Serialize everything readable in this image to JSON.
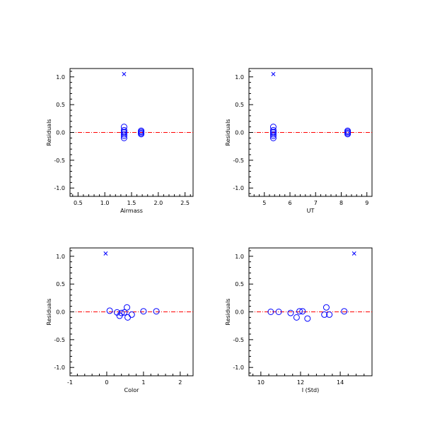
{
  "colors": {
    "points": "#0000ff",
    "zero_line": "#ff0000",
    "axes": "#000000"
  },
  "chart_data": [
    {
      "type": "scatter",
      "xlabel": "Airmass",
      "ylabel": "Residuals",
      "xlim": [
        0.35,
        2.65
      ],
      "ylim": [
        -1.15,
        1.15
      ],
      "xticks": [
        0.5,
        1.0,
        1.5,
        2.0,
        2.5
      ],
      "xtick_labels": [
        "0.5",
        "1.0",
        "1.5",
        "2.0",
        "2.5"
      ],
      "yticks": [
        -1.0,
        -0.5,
        0.0,
        0.5,
        1.0
      ],
      "ytick_labels": [
        "-1.0",
        "-0.5",
        "0.0",
        "0.5",
        "1.0"
      ],
      "zero_line": true,
      "series": [
        {
          "marker": "circle",
          "x": [
            1.36,
            1.36,
            1.36,
            1.36,
            1.36,
            1.36,
            1.36,
            1.68,
            1.68,
            1.68,
            1.68
          ],
          "y": [
            0.1,
            0.04,
            0.01,
            0.0,
            -0.03,
            -0.06,
            -0.1,
            0.03,
            0.01,
            -0.01,
            -0.03
          ]
        },
        {
          "marker": "cross",
          "x": [
            1.36
          ],
          "y": [
            1.05
          ]
        }
      ]
    },
    {
      "type": "scatter",
      "xlabel": "UT",
      "ylabel": "Residuals",
      "xlim": [
        4.4,
        9.2
      ],
      "ylim": [
        -1.15,
        1.15
      ],
      "xticks": [
        5,
        6,
        7,
        8,
        9
      ],
      "xtick_labels": [
        "5",
        "6",
        "7",
        "8",
        "9"
      ],
      "yticks": [
        -1.0,
        -0.5,
        0.0,
        0.5,
        1.0
      ],
      "ytick_labels": [
        "-1.0",
        "-0.5",
        "0.0",
        "0.5",
        "1.0"
      ],
      "zero_line": true,
      "series": [
        {
          "marker": "circle",
          "x": [
            5.35,
            5.35,
            5.35,
            5.35,
            5.35,
            5.35,
            5.35,
            8.25,
            8.25,
            8.25,
            8.25
          ],
          "y": [
            0.1,
            0.04,
            0.01,
            0.0,
            -0.03,
            -0.06,
            -0.1,
            0.03,
            0.01,
            -0.01,
            -0.03
          ]
        },
        {
          "marker": "cross",
          "x": [
            5.35
          ],
          "y": [
            1.05
          ]
        }
      ]
    },
    {
      "type": "scatter",
      "xlabel": "Color",
      "ylabel": "Residuals",
      "xlim": [
        -1.0,
        2.35
      ],
      "ylim": [
        -1.15,
        1.15
      ],
      "xticks": [
        -1,
        0,
        1,
        2
      ],
      "xtick_labels": [
        "-1",
        "0",
        "1",
        "2"
      ],
      "yticks": [
        -1.0,
        -0.5,
        0.0,
        0.5,
        1.0
      ],
      "ytick_labels": [
        "-1.0",
        "-0.5",
        "0.0",
        "0.5",
        "1.0"
      ],
      "zero_line": true,
      "series": [
        {
          "marker": "circle",
          "x": [
            0.08,
            0.28,
            0.35,
            0.4,
            0.48,
            0.55,
            0.57,
            0.68,
            1.0,
            1.35
          ],
          "y": [
            0.02,
            -0.01,
            -0.07,
            -0.02,
            -0.01,
            0.08,
            -0.1,
            -0.05,
            0.01,
            0.01
          ]
        },
        {
          "marker": "cross",
          "x": [
            -0.03
          ],
          "y": [
            1.05
          ]
        }
      ]
    },
    {
      "type": "scatter",
      "xlabel": "I (Std)",
      "ylabel": "Residuals",
      "xlim": [
        9.4,
        15.6
      ],
      "ylim": [
        -1.15,
        1.15
      ],
      "xticks": [
        10,
        12,
        14
      ],
      "xtick_labels": [
        "10",
        "12",
        "14"
      ],
      "yticks": [
        -1.0,
        -0.5,
        0.0,
        0.5,
        1.0
      ],
      "ytick_labels": [
        "-1.0",
        "-0.5",
        "0.0",
        "0.5",
        "1.0"
      ],
      "zero_line": true,
      "series": [
        {
          "marker": "circle",
          "x": [
            10.5,
            10.9,
            11.5,
            11.8,
            11.95,
            12.1,
            12.35,
            13.2,
            13.3,
            13.45,
            14.2
          ],
          "y": [
            0.0,
            0.0,
            -0.02,
            -0.1,
            0.01,
            0.01,
            -0.12,
            -0.05,
            0.08,
            -0.05,
            0.01
          ]
        },
        {
          "marker": "cross",
          "x": [
            14.7
          ],
          "y": [
            1.05
          ]
        }
      ]
    }
  ]
}
